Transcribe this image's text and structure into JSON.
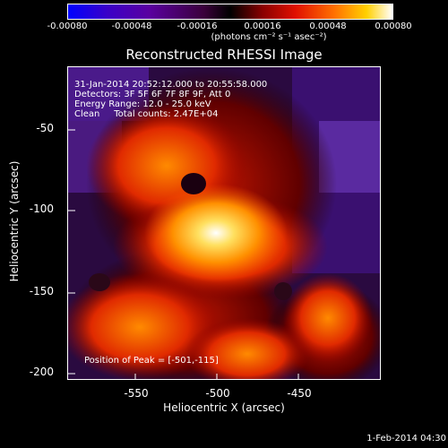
{
  "colorbar": {
    "ticks": [
      "-0.00080",
      "-0.00048",
      "-0.00016",
      "0.00016",
      "0.00048",
      "0.00080"
    ],
    "units": "(photons cm⁻² s⁻¹ asec⁻²)"
  },
  "title": "Reconstructed RHESSI Image",
  "info": {
    "time_range": "31-Jan-2014 20:52:12.000 to 20:55:58.000",
    "detectors": "Detectors: 3F 5F 6F 7F 8F 9F, Att 0",
    "energy_range": "Energy Range: 12.0 - 25.0 keV",
    "clean_counts": "Clean     Total counts: 2.47E+04"
  },
  "peak_text": "Position of Peak = [-501,-115]",
  "axes": {
    "xlabel": "Heliocentric X (arcsec)",
    "ylabel": "Heliocentric Y (arcsec)",
    "xticks": [
      "-550",
      "-500",
      "-450"
    ],
    "yticks": [
      "-50",
      "-100",
      "-150",
      "-200"
    ]
  },
  "footer_date": "1-Feb-2014 04:30"
}
